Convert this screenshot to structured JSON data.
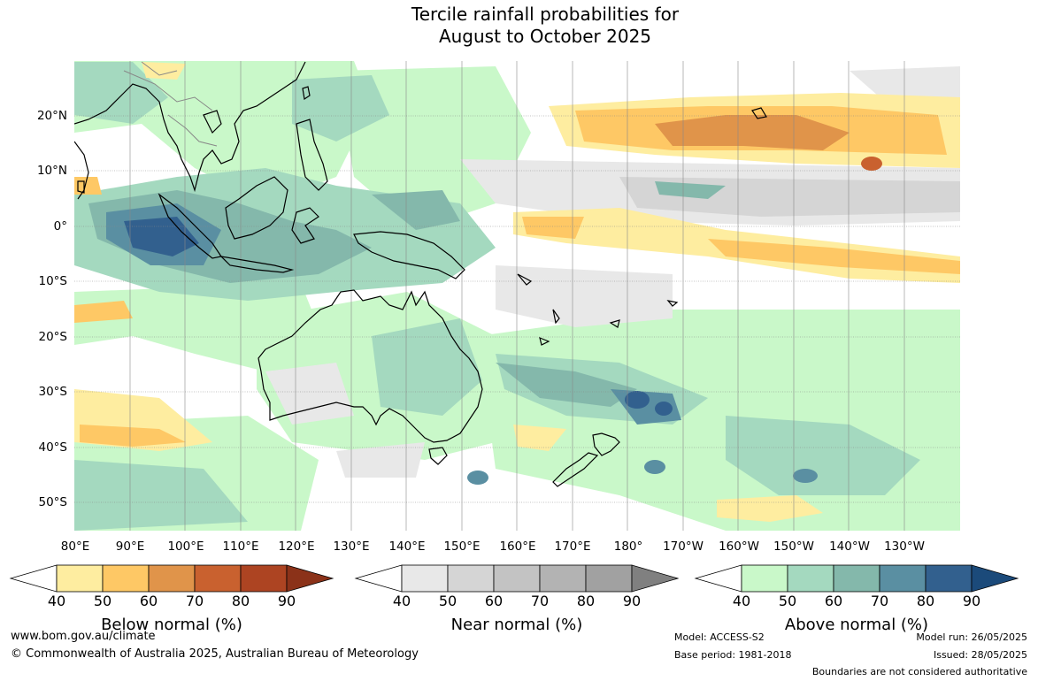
{
  "title": {
    "line1": "Tercile rainfall probabilities for",
    "line2": "August to October 2025"
  },
  "map": {
    "lat_labels": [
      "20°N",
      "10°N",
      "0°",
      "10°S",
      "20°S",
      "30°S",
      "40°S",
      "50°S"
    ],
    "lon_labels": [
      "80°E",
      "90°E",
      "100°E",
      "110°E",
      "120°E",
      "130°E",
      "140°E",
      "150°E",
      "160°E",
      "170°E",
      "180°",
      "170°W",
      "160°W",
      "150°W",
      "140°W",
      "130°W"
    ],
    "regions": [
      {
        "name": "Maritime Continent / eastern Indian Ocean",
        "category": "above",
        "level": 80
      },
      {
        "name": "Tropical North Pacific (around 15°N)",
        "category": "below",
        "level": 70
      },
      {
        "name": "Equatorial central Pacific",
        "category": "below",
        "level": 60
      },
      {
        "name": "Central Pacific (around 5°N)",
        "category": "near",
        "level": 50
      },
      {
        "name": "Australia",
        "category": "above",
        "level": 60
      },
      {
        "name": "South-west Pacific / Tasman Sea",
        "category": "above",
        "level": 80
      },
      {
        "name": "Southern Indian Ocean (around 38°S)",
        "category": "below",
        "level": 60
      }
    ]
  },
  "colorbars": [
    {
      "title": "Below normal (%)",
      "ticks": [
        "40",
        "50",
        "60",
        "70",
        "80",
        "90"
      ],
      "colors": [
        "#ffffff",
        "#feeda0",
        "#fec865",
        "#e0944a",
        "#c9612f",
        "#ad4422",
        "#8b3219"
      ]
    },
    {
      "title": "Near normal (%)",
      "ticks": [
        "40",
        "50",
        "60",
        "70",
        "80",
        "90"
      ],
      "colors": [
        "#ffffff",
        "#e8e8e8",
        "#d5d5d5",
        "#c3c3c3",
        "#b3b3b3",
        "#a1a1a1",
        "#808080"
      ]
    },
    {
      "title": "Above normal (%)",
      "ticks": [
        "40",
        "50",
        "60",
        "70",
        "80",
        "90"
      ],
      "colors": [
        "#ffffff",
        "#c9f8c9",
        "#a4d9bf",
        "#84b8ab",
        "#5a8fa2",
        "#32608e",
        "#1b4a7a"
      ]
    }
  ],
  "footer": {
    "url": "www.bom.gov.au/climate",
    "copyright": "© Commonwealth of Australia 2025, Australian Bureau of Meteorology",
    "model": "Model: ACCESS-S2",
    "base_period": "Base period: 1981-2018",
    "model_run": "Model run: 26/05/2025",
    "issued": "Issued: 28/05/2025",
    "disclaimer": "Boundaries are not considered authoritative"
  }
}
